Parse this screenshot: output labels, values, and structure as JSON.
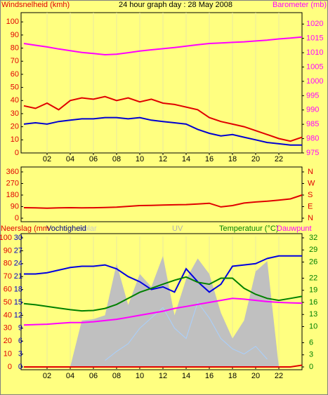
{
  "chart_data": [
    {
      "type": "line",
      "title": "24 hour graph day : 28 May 2008",
      "ylabel": "Windsnelheid (kmh)",
      "y2label": "Barometer (mb)",
      "x": [
        0,
        1,
        2,
        3,
        4,
        5,
        6,
        7,
        8,
        9,
        10,
        11,
        12,
        13,
        14,
        15,
        16,
        17,
        18,
        19,
        20,
        21,
        22,
        23,
        24
      ],
      "xlim": [
        0,
        24
      ],
      "xticks": [
        {
          "value": 2,
          "label": "02"
        },
        {
          "value": 4,
          "label": "04"
        },
        {
          "value": 6,
          "label": "06"
        },
        {
          "value": 8,
          "label": "08"
        },
        {
          "value": 10,
          "label": "10"
        },
        {
          "value": 12,
          "label": "12"
        },
        {
          "value": 14,
          "label": "14"
        },
        {
          "value": 16,
          "label": "16"
        },
        {
          "value": 18,
          "label": "18"
        },
        {
          "value": 20,
          "label": "20"
        },
        {
          "value": 22,
          "label": "22"
        }
      ],
      "ylim": [
        0,
        106
      ],
      "yticks": [
        0,
        10,
        20,
        30,
        40,
        50,
        60,
        70,
        80,
        90,
        100
      ],
      "y2lim": [
        975,
        1023.5
      ],
      "y2ticks": [
        975,
        980,
        985,
        990,
        995,
        1000,
        1005,
        1010,
        1015,
        1020
      ],
      "grid": true,
      "series": [
        {
          "color": "#e00000",
          "values": [
            36,
            34,
            38,
            33,
            40,
            42,
            41,
            43,
            40,
            42,
            39,
            41,
            38,
            37,
            35,
            33,
            27,
            24,
            22,
            20,
            17,
            14,
            11,
            9,
            12
          ]
        },
        {
          "color": "#0000d0",
          "values": [
            22,
            23,
            22,
            24,
            25,
            26,
            26,
            27,
            27,
            26,
            27,
            25,
            24,
            23,
            22,
            18,
            15,
            13,
            14,
            12,
            10,
            8,
            7,
            6,
            6
          ]
        },
        {
          "color": "#ff00ff",
          "axis": "y2",
          "values": [
            1013.2,
            1012.6,
            1012,
            1011.3,
            1010.7,
            1010.1,
            1009.7,
            1009.3,
            1009.5,
            1010,
            1010.6,
            1011,
            1011.4,
            1011.8,
            1012.3,
            1012.8,
            1013.2,
            1013.4,
            1013.6,
            1013.8,
            1014.1,
            1014.4,
            1014.8,
            1015.1,
            1015.5
          ]
        }
      ]
    },
    {
      "type": "line",
      "x": [
        0,
        1,
        2,
        3,
        4,
        5,
        6,
        7,
        8,
        9,
        10,
        11,
        12,
        13,
        14,
        15,
        16,
        17,
        18,
        19,
        20,
        21,
        22,
        23,
        24
      ],
      "xlim": [
        0,
        24
      ],
      "ylim": [
        0,
        360
      ],
      "yticks": [
        0,
        90,
        180,
        270,
        360
      ],
      "y2lim": [
        0,
        360
      ],
      "y2ticks": [
        {
          "value": 0,
          "label": "N"
        },
        {
          "value": 90,
          "label": "E"
        },
        {
          "value": 180,
          "label": "S"
        },
        {
          "value": 270,
          "label": "W"
        },
        {
          "value": 360,
          "label": "N"
        }
      ],
      "series": [
        {
          "color": "#e00000",
          "values": [
            82,
            80,
            78,
            80,
            82,
            80,
            81,
            83,
            86,
            92,
            98,
            100,
            102,
            104,
            106,
            110,
            116,
            88,
            98,
            118,
            126,
            132,
            140,
            150,
            180
          ]
        }
      ]
    },
    {
      "type": "line",
      "x": [
        0,
        1,
        2,
        3,
        4,
        5,
        6,
        7,
        8,
        9,
        10,
        11,
        12,
        13,
        14,
        15,
        16,
        17,
        18,
        19,
        20,
        21,
        22,
        23,
        24
      ],
      "xlim": [
        0,
        24
      ],
      "xticks": [
        {
          "value": 2,
          "label": "02"
        },
        {
          "value": 4,
          "label": "04"
        },
        {
          "value": 6,
          "label": "06"
        },
        {
          "value": 8,
          "label": "08"
        },
        {
          "value": 10,
          "label": "10"
        },
        {
          "value": 12,
          "label": "12"
        },
        {
          "value": 14,
          "label": "14"
        },
        {
          "value": 16,
          "label": "16"
        },
        {
          "value": 18,
          "label": "18"
        },
        {
          "value": 20,
          "label": "20"
        },
        {
          "value": 22,
          "label": "22"
        }
      ],
      "ylim": [
        0,
        100
      ],
      "yticks": [
        0,
        10,
        20,
        30,
        40,
        50,
        60,
        70,
        80,
        90,
        100
      ],
      "y3lim": [
        0,
        30
      ],
      "y3ticks": [
        0,
        3,
        6,
        9,
        12,
        15,
        18,
        21,
        24,
        27,
        30
      ],
      "y2lim": [
        0,
        32
      ],
      "y2ticks": [
        0,
        3,
        6,
        10,
        13,
        16,
        19,
        22,
        26,
        29,
        32
      ],
      "grid": true,
      "series": [
        {
          "name": "Solar",
          "color": "#c0c0c0",
          "style": "area",
          "values": [
            0,
            0,
            0,
            0,
            0,
            36,
            37,
            40,
            80,
            48,
            72,
            62,
            86,
            40,
            68,
            84,
            72,
            42,
            22,
            36,
            74,
            82,
            0,
            0,
            0
          ]
        },
        {
          "name": "UV",
          "color": "#a8d0ff",
          "values": [
            null,
            null,
            null,
            null,
            null,
            null,
            null,
            5,
            12,
            18,
            30,
            38,
            46,
            30,
            22,
            50,
            38,
            22,
            14,
            10,
            16,
            6,
            null,
            null,
            null
          ]
        },
        {
          "name": "Vochtigheid",
          "color": "#0000e0",
          "values": [
            72,
            72,
            73,
            75,
            77,
            78,
            78,
            79,
            76,
            70,
            66,
            60,
            62,
            58,
            76,
            66,
            58,
            64,
            78,
            79,
            80,
            84,
            86,
            86,
            86
          ]
        },
        {
          "name": "Temperatuur (°C)",
          "color": "#008000",
          "axis": "y2",
          "values": [
            15.7,
            15.4,
            15,
            14.6,
            14.2,
            13.9,
            14,
            14.5,
            15.5,
            17,
            18.5,
            19.5,
            20.5,
            21.5,
            22.3,
            21,
            20.5,
            22,
            22,
            19.5,
            18,
            17,
            16.5,
            17,
            17.5
          ]
        },
        {
          "name": "Dauwpunt",
          "color": "#ff00ff",
          "axis": "y2",
          "values": [
            10.4,
            10.5,
            10.6,
            10.8,
            11,
            11,
            11.2,
            11.5,
            11.8,
            12.3,
            12.8,
            13.3,
            13.8,
            14.5,
            15,
            15.5,
            16,
            16.5,
            17,
            16.8,
            16.5,
            16.2,
            16,
            15.9,
            15.8
          ]
        },
        {
          "name": "Neerslag (mm",
          "color": "#e00000",
          "axis": "y3",
          "values": [
            0,
            0,
            0,
            0,
            0,
            0,
            0,
            0,
            0,
            0,
            0,
            0,
            0,
            0,
            0,
            0,
            0,
            0,
            0,
            0,
            0,
            0,
            0,
            0,
            0.4
          ]
        }
      ]
    }
  ]
}
